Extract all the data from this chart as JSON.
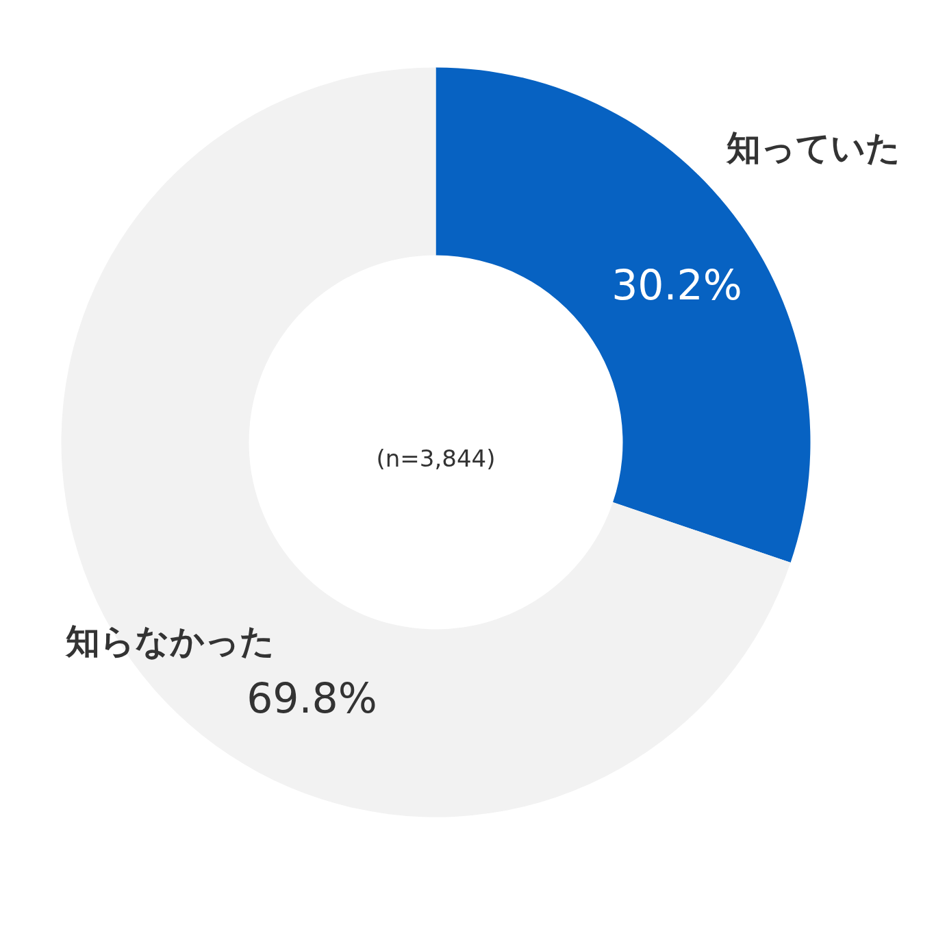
{
  "chart_data": {
    "type": "donut",
    "categories": [
      "知っていた",
      "知らなかった"
    ],
    "values": [
      30.2,
      69.8
    ],
    "colors": [
      "#0762c2",
      "#f2f2f2"
    ],
    "value_labels": [
      "30.2%",
      "69.8%"
    ],
    "annotations": [
      "(n=3,844)"
    ]
  }
}
